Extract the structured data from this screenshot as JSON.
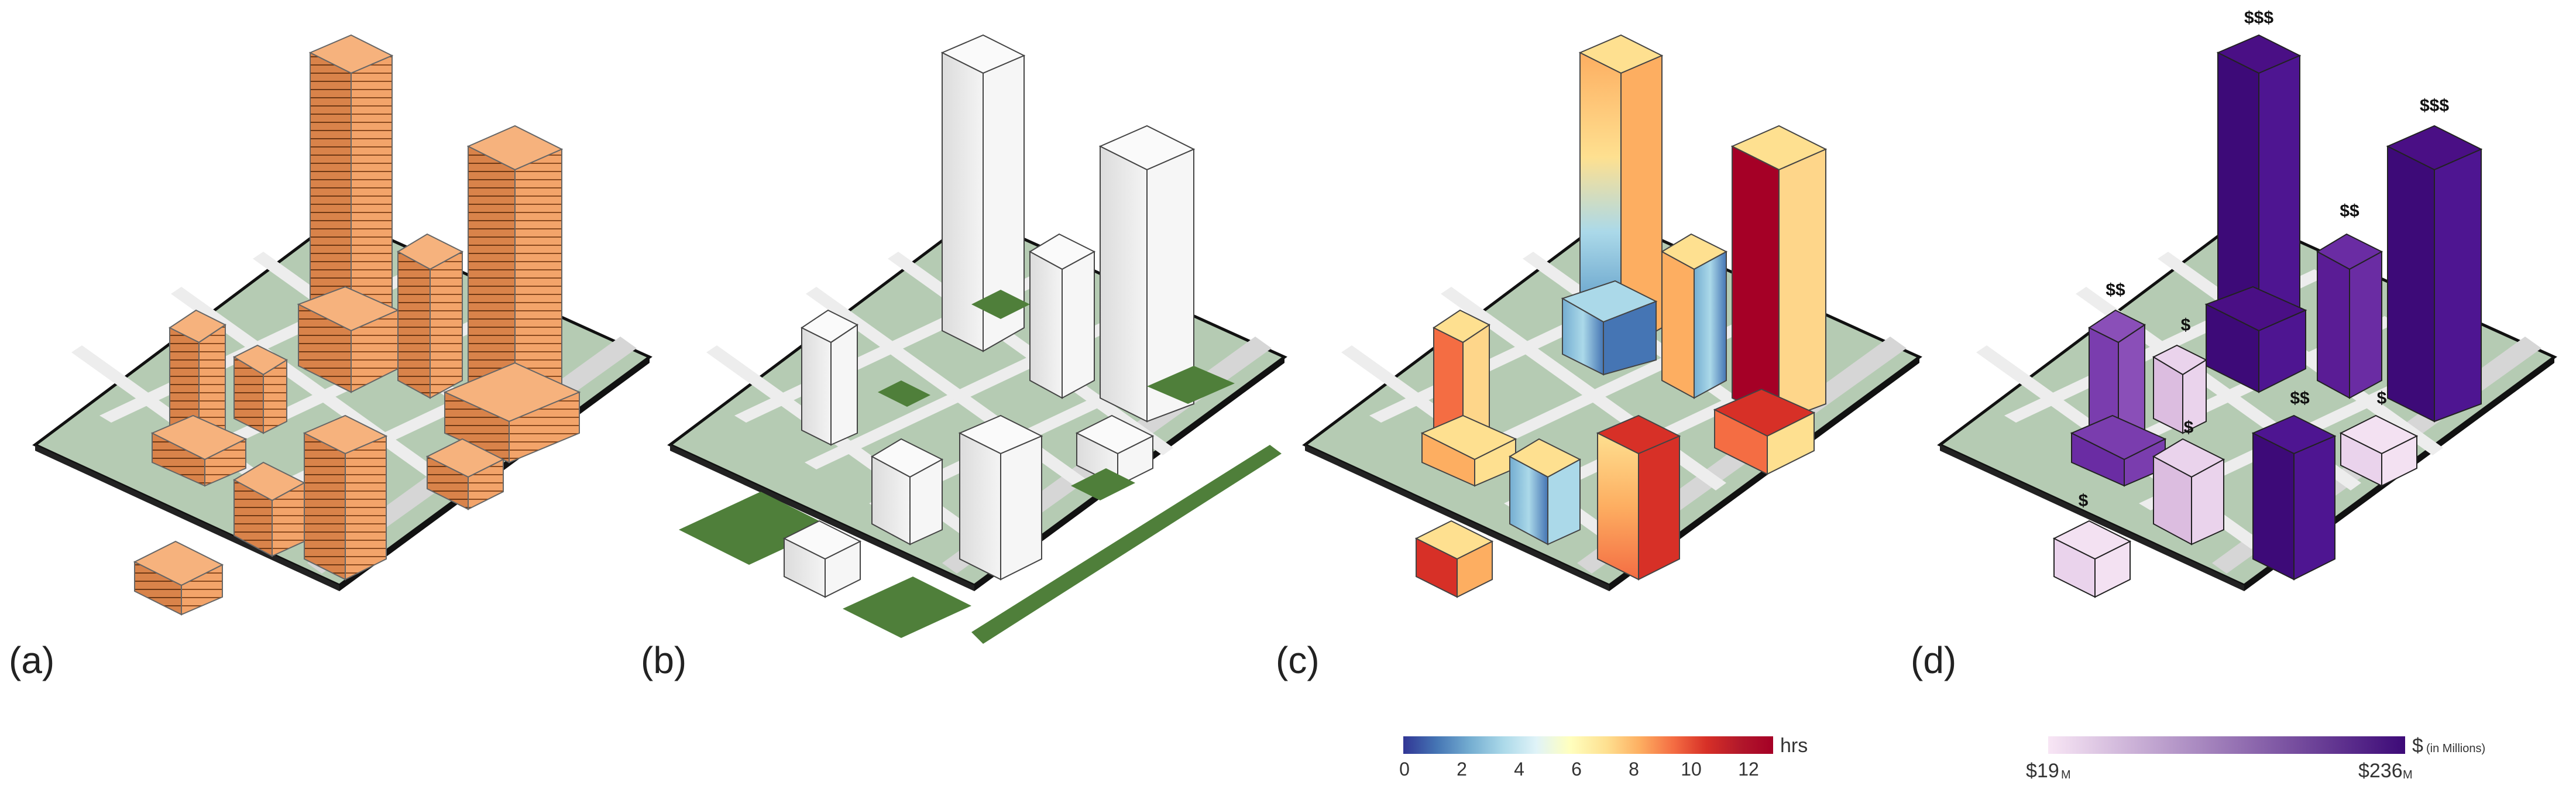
{
  "panels": [
    {
      "id": "a",
      "label": "(a)"
    },
    {
      "id": "b",
      "label": "(b)"
    },
    {
      "id": "c",
      "label": "(c)"
    },
    {
      "id": "d",
      "label": "(d)"
    }
  ],
  "sunlight_legend": {
    "unit": "hrs",
    "ticks": [
      "0",
      "2",
      "4",
      "6",
      "8",
      "10",
      "12"
    ],
    "colors": [
      "#313695",
      "#4575b4",
      "#74add1",
      "#abd9e9",
      "#e0f3f8",
      "#ffffbf",
      "#fee090",
      "#fdae61",
      "#f46d43",
      "#d73027",
      "#b2182b",
      "#a50026"
    ]
  },
  "value_legend": {
    "unit": "$",
    "unit_note": "(in Millions)",
    "min_label": "$19",
    "min_sub": "M",
    "max_label": "$236",
    "max_sub": "M",
    "color_low": "#f8e6f5",
    "color_high": "#3d0a78"
  },
  "value_markers": [
    "$$$",
    "$$$",
    "$$",
    "$$",
    "$",
    "$$",
    "$",
    "$",
    "$"
  ],
  "colors": {
    "ground": "#b5cbb3",
    "road": "#e6e6e6",
    "green_roof": "#4f7f3a",
    "massing": "#f3a46a",
    "white": "#f2f2f2"
  }
}
